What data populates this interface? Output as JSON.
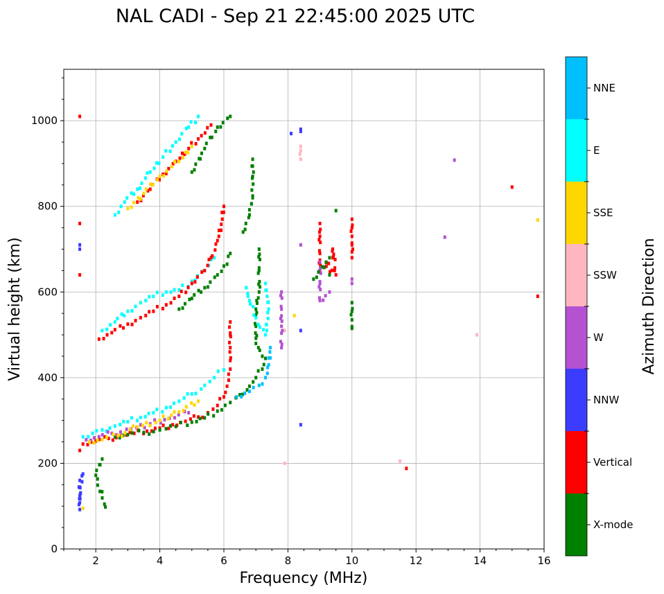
{
  "chart_data": {
    "type": "scatter",
    "title": "NAL CADI - Sep 21 22:45:00 2025 UTC",
    "xlabel": "Frequency (MHz)",
    "ylabel": "Virtual height (km)",
    "xlim": [
      1,
      16
    ],
    "ylim": [
      0,
      1120
    ],
    "xticks": [
      2,
      4,
      6,
      8,
      10,
      12,
      14,
      16
    ],
    "yticks": [
      0,
      200,
      400,
      600,
      800,
      1000
    ],
    "grid": true,
    "colorbar": {
      "title": "Azimuth Direction",
      "categories": [
        {
          "name": "X-mode",
          "color": "#008000"
        },
        {
          "name": "Vertical",
          "color": "#ff0000"
        },
        {
          "name": "NNW",
          "color": "#3c3cff"
        },
        {
          "name": "W",
          "color": "#b452d2"
        },
        {
          "name": "SSW",
          "color": "#ffb6c1"
        },
        {
          "name": "SSE",
          "color": "#ffd700"
        },
        {
          "name": "E",
          "color": "#00ffff"
        },
        {
          "name": "NNE",
          "color": "#00bfff"
        }
      ]
    },
    "traces": [
      {
        "name": "echo-1-E",
        "category": "E",
        "points": [
          [
            1.6,
            262
          ],
          [
            1.9,
            270
          ],
          [
            2.2,
            278
          ],
          [
            2.6,
            287
          ],
          [
            3.0,
            297
          ],
          [
            3.4,
            307
          ],
          [
            3.8,
            318
          ],
          [
            4.2,
            330
          ],
          [
            4.6,
            345
          ],
          [
            5.0,
            362
          ],
          [
            5.4,
            382
          ],
          [
            5.7,
            400
          ],
          [
            6.0,
            418
          ]
        ]
      },
      {
        "name": "echo-1-Vertical",
        "category": "Vertical",
        "points": [
          [
            1.6,
            245
          ],
          [
            2.0,
            252
          ],
          [
            2.4,
            258
          ],
          [
            2.8,
            264
          ],
          [
            3.2,
            270
          ],
          [
            3.6,
            275
          ],
          [
            4.0,
            282
          ],
          [
            4.4,
            290
          ],
          [
            4.8,
            298
          ],
          [
            5.2,
            308
          ],
          [
            5.5,
            318
          ],
          [
            5.8,
            335
          ],
          [
            6.0,
            355
          ],
          [
            6.1,
            380
          ],
          [
            6.2,
            420
          ]
        ]
      },
      {
        "name": "echo-1-X-mode",
        "category": "X-mode",
        "points": [
          [
            2.6,
            262
          ],
          [
            3.0,
            267
          ],
          [
            3.5,
            272
          ],
          [
            4.0,
            278
          ],
          [
            4.5,
            286
          ],
          [
            5.0,
            296
          ],
          [
            5.4,
            306
          ],
          [
            5.8,
            322
          ],
          [
            6.2,
            342
          ],
          [
            6.5,
            360
          ],
          [
            6.8,
            380
          ],
          [
            7.0,
            400
          ],
          [
            7.2,
            420
          ],
          [
            7.3,
            445
          ]
        ]
      },
      {
        "name": "echo-1-mixed",
        "category": "W",
        "points": [
          [
            1.7,
            255
          ],
          [
            2.1,
            262
          ],
          [
            2.5,
            270
          ],
          [
            3.1,
            280
          ],
          [
            3.7,
            292
          ],
          [
            4.3,
            305
          ],
          [
            4.9,
            318
          ]
        ]
      },
      {
        "name": "echo-1-SSE",
        "category": "SSE",
        "points": [
          [
            1.8,
            250
          ],
          [
            2.2,
            255
          ],
          [
            2.7,
            265
          ],
          [
            3.3,
            285
          ],
          [
            4.0,
            300
          ],
          [
            4.6,
            320
          ],
          [
            5.2,
            345
          ]
        ]
      },
      {
        "name": "echo-1-NNE",
        "category": "NNE",
        "points": [
          [
            6.4,
            355
          ],
          [
            6.8,
            368
          ],
          [
            7.1,
            382
          ],
          [
            7.3,
            400
          ],
          [
            7.4,
            430
          ],
          [
            7.45,
            470
          ]
        ]
      },
      {
        "name": "echo-2-E",
        "category": "E",
        "points": [
          [
            2.2,
            510
          ],
          [
            2.6,
            530
          ],
          [
            3.0,
            555
          ],
          [
            3.4,
            575
          ],
          [
            3.8,
            590
          ],
          [
            4.2,
            600
          ],
          [
            4.6,
            605
          ],
          [
            5.0,
            625
          ],
          [
            5.4,
            650
          ],
          [
            5.7,
            680
          ]
        ]
      },
      {
        "name": "echo-2-Vertical",
        "category": "Vertical",
        "points": [
          [
            2.1,
            490
          ],
          [
            2.5,
            505
          ],
          [
            3.0,
            525
          ],
          [
            3.4,
            540
          ],
          [
            3.8,
            555
          ],
          [
            4.2,
            570
          ],
          [
            4.6,
            590
          ],
          [
            5.0,
            620
          ],
          [
            5.4,
            650
          ],
          [
            5.6,
            680
          ],
          [
            5.8,
            720
          ],
          [
            5.95,
            770
          ],
          [
            6.0,
            800
          ]
        ]
      },
      {
        "name": "echo-2-X-mode",
        "category": "X-mode",
        "points": [
          [
            4.6,
            560
          ],
          [
            5.0,
            585
          ],
          [
            5.4,
            610
          ],
          [
            5.8,
            640
          ],
          [
            6.1,
            665
          ],
          [
            6.2,
            690
          ]
        ]
      },
      {
        "name": "echo-3-E",
        "category": "E",
        "points": [
          [
            2.6,
            780
          ],
          [
            2.9,
            810
          ],
          [
            3.3,
            840
          ],
          [
            3.7,
            880
          ],
          [
            4.1,
            915
          ],
          [
            4.5,
            950
          ],
          [
            4.9,
            985
          ],
          [
            5.2,
            1010
          ]
        ]
      },
      {
        "name": "echo-3-Vertical",
        "category": "Vertical",
        "points": [
          [
            3.3,
            810
          ],
          [
            3.7,
            840
          ],
          [
            4.1,
            875
          ],
          [
            4.5,
            905
          ],
          [
            4.9,
            935
          ],
          [
            5.3,
            965
          ],
          [
            5.6,
            990
          ]
        ]
      },
      {
        "name": "echo-3-X-mode",
        "category": "X-mode",
        "points": [
          [
            5.0,
            880
          ],
          [
            5.4,
            935
          ],
          [
            5.8,
            985
          ],
          [
            6.2,
            1010
          ]
        ]
      },
      {
        "name": "echo-3-misc",
        "category": "SSE",
        "points": [
          [
            3.0,
            795
          ],
          [
            3.5,
            830
          ],
          [
            4.0,
            870
          ],
          [
            4.6,
            905
          ],
          [
            5.0,
            940
          ]
        ]
      },
      {
        "name": "column-6.2",
        "category": "Vertical",
        "points": [
          [
            6.2,
            440
          ],
          [
            6.2,
            470
          ],
          [
            6.2,
            500
          ],
          [
            6.2,
            530
          ]
        ]
      },
      {
        "name": "column-6.9-X",
        "category": "X-mode",
        "points": [
          [
            6.6,
            740
          ],
          [
            6.8,
            780
          ],
          [
            6.9,
            820
          ],
          [
            6.9,
            870
          ],
          [
            6.9,
            910
          ],
          [
            7.1,
            700
          ],
          [
            7.1,
            650
          ],
          [
            7.1,
            600
          ],
          [
            7.0,
            560
          ],
          [
            7.0,
            520
          ],
          [
            7.0,
            480
          ],
          [
            7.2,
            450
          ]
        ]
      },
      {
        "name": "column-6.9-E",
        "category": "E",
        "points": [
          [
            6.7,
            610
          ],
          [
            6.8,
            580
          ],
          [
            7.0,
            540
          ],
          [
            7.3,
            500
          ],
          [
            7.4,
            560
          ],
          [
            7.3,
            620
          ]
        ]
      },
      {
        "name": "isolated-1.5",
        "category": "Vertical",
        "points": [
          [
            1.5,
            1010
          ],
          [
            1.5,
            760
          ],
          [
            1.5,
            640
          ],
          [
            1.5,
            230
          ]
        ]
      },
      {
        "name": "isolated-1.5-NNW",
        "category": "NNW",
        "points": [
          [
            1.5,
            710
          ],
          [
            1.5,
            700
          ],
          [
            1.5,
            125
          ],
          [
            1.6,
            175
          ]
        ]
      },
      {
        "name": "isolated-8.4",
        "category": "SSW",
        "points": [
          [
            8.4,
            940
          ],
          [
            8.4,
            930
          ],
          [
            8.4,
            910
          ],
          [
            7.9,
            510
          ],
          [
            7.9,
            200
          ]
        ]
      },
      {
        "name": "isolated-8.4-NNW",
        "category": "NNW",
        "points": [
          [
            8.4,
            980
          ],
          [
            8.4,
            975
          ],
          [
            8.4,
            510
          ],
          [
            8.4,
            290
          ],
          [
            8.1,
            970
          ]
        ]
      },
      {
        "name": "isolated-8.4-W",
        "category": "W",
        "points": [
          [
            8.4,
            710
          ],
          [
            7.8,
            600
          ],
          [
            7.8,
            560
          ],
          [
            7.8,
            520
          ],
          [
            7.8,
            470
          ]
        ]
      },
      {
        "name": "cluster-9",
        "category": "Vertical",
        "points": [
          [
            9.0,
            760
          ],
          [
            9.0,
            730
          ],
          [
            9.0,
            690
          ],
          [
            9.0,
            650
          ],
          [
            9.4,
            680
          ],
          [
            9.4,
            700
          ],
          [
            9.5,
            640
          ],
          [
            9.2,
            660
          ]
        ]
      },
      {
        "name": "cluster-9-W",
        "category": "W",
        "points": [
          [
            9.0,
            670
          ],
          [
            9.0,
            620
          ],
          [
            9.0,
            580
          ],
          [
            9.3,
            600
          ]
        ]
      },
      {
        "name": "cluster-9-X",
        "category": "X-mode",
        "points": [
          [
            8.8,
            630
          ],
          [
            9.3,
            680
          ],
          [
            9.5,
            790
          ],
          [
            9.3,
            640
          ]
        ]
      },
      {
        "name": "column-10-red",
        "category": "Vertical",
        "points": [
          [
            10.0,
            770
          ],
          [
            10.0,
            750
          ],
          [
            10.0,
            730
          ],
          [
            10.0,
            710
          ],
          [
            10.0,
            680
          ]
        ]
      },
      {
        "name": "column-10-green",
        "category": "X-mode",
        "points": [
          [
            10.0,
            575
          ],
          [
            10.0,
            555
          ],
          [
            10.0,
            535
          ],
          [
            10.0,
            515
          ]
        ]
      },
      {
        "name": "column-10-W",
        "category": "W",
        "points": [
          [
            10.0,
            630
          ],
          [
            10.0,
            620
          ]
        ]
      },
      {
        "name": "isolated-right",
        "category": "Vertical",
        "points": [
          [
            15.0,
            845
          ],
          [
            15.8,
            590
          ],
          [
            11.7,
            188
          ]
        ]
      },
      {
        "name": "isolated-right-W",
        "category": "W",
        "points": [
          [
            13.2,
            908
          ],
          [
            12.9,
            728
          ]
        ]
      },
      {
        "name": "isolated-right-SSW",
        "category": "SSW",
        "points": [
          [
            13.9,
            500
          ],
          [
            11.5,
            205
          ]
        ]
      },
      {
        "name": "isolated-right-SSE",
        "category": "SSE",
        "points": [
          [
            15.8,
            768
          ],
          [
            8.2,
            545
          ],
          [
            1.6,
            95
          ]
        ]
      },
      {
        "name": "isolated-low",
        "category": "NNW",
        "points": [
          [
            1.5,
            108
          ],
          [
            1.5,
            92
          ],
          [
            1.5,
            160
          ]
        ]
      },
      {
        "name": "isolated-low-black",
        "category": "X-mode",
        "points": [
          [
            2.3,
            98
          ],
          [
            2.0,
            172
          ],
          [
            2.2,
            210
          ]
        ]
      }
    ]
  }
}
